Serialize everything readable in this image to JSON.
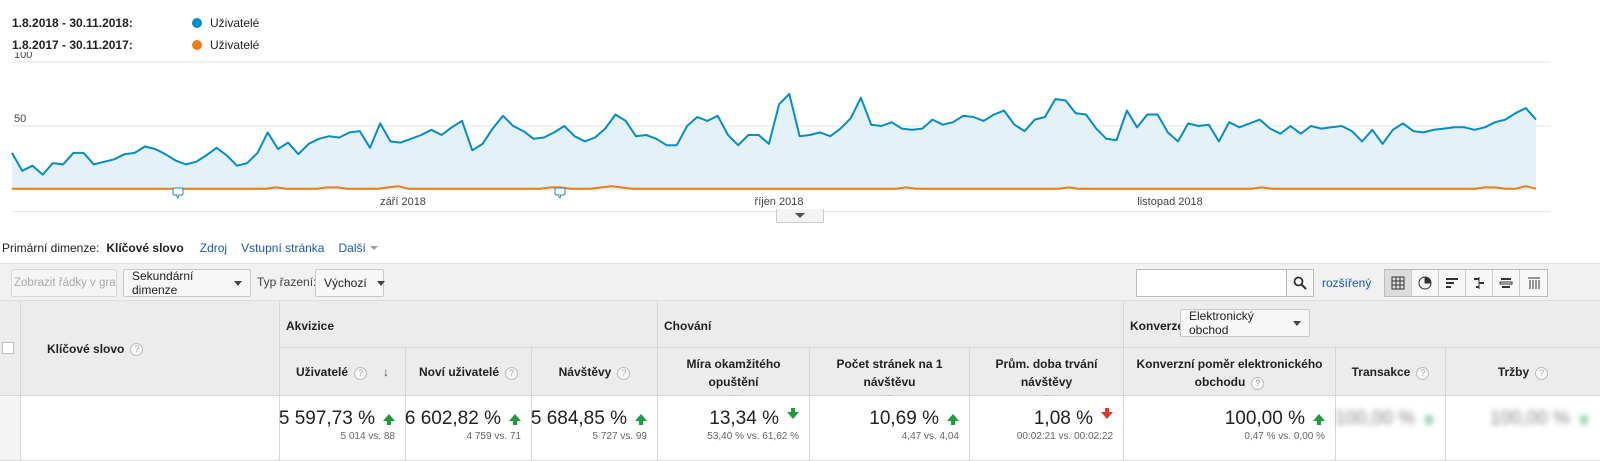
{
  "legend": [
    {
      "range": "1.8.2018 - 30.11.2018:",
      "series": "Uživatelé",
      "color": "#058dc7"
    },
    {
      "range": "1.8.2017 - 30.11.2017:",
      "series": "Uživatelé",
      "color": "#ed7e17"
    }
  ],
  "chart_data": {
    "type": "area",
    "y_ticks": [
      "100",
      "50"
    ],
    "ylim": [
      0,
      100
    ],
    "x_labels": [
      "září 2018",
      "říjen 2018",
      "listopad 2018"
    ],
    "series": [
      {
        "name": "Uživatelé",
        "color": "#058dc7",
        "values": [
          29,
          15,
          19,
          12,
          21,
          20,
          29,
          29,
          20,
          22,
          24,
          28,
          29,
          34,
          32,
          28,
          23,
          20,
          22,
          27,
          33,
          27,
          19,
          21,
          29,
          45,
          32,
          37,
          28,
          36,
          40,
          42,
          41,
          45,
          46,
          33,
          52,
          38,
          37,
          40,
          43,
          47,
          43,
          49,
          54,
          31,
          36,
          48,
          58,
          50,
          46,
          40,
          41,
          45,
          50,
          42,
          38,
          41,
          48,
          59,
          54,
          42,
          43,
          40,
          35,
          35,
          50,
          57,
          54,
          58,
          43,
          35,
          43,
          43,
          36,
          67,
          75,
          42,
          43,
          45,
          42,
          48,
          56,
          72,
          51,
          50,
          53,
          48,
          47,
          48,
          55,
          51,
          53,
          58,
          57,
          54,
          59,
          62,
          51,
          46,
          55,
          57,
          71,
          70,
          60,
          59,
          48,
          40,
          39,
          62,
          49,
          59,
          59,
          45,
          38,
          52,
          50,
          51,
          38,
          53,
          49,
          52,
          55,
          48,
          44,
          50,
          44,
          50,
          48,
          49,
          50,
          46,
          38,
          47,
          36,
          47,
          52,
          46,
          45,
          47,
          48,
          49,
          49,
          47,
          49,
          53,
          55,
          60,
          64,
          55
        ]
      },
      {
        "name": "Uživatelé",
        "color": "#ed7e17",
        "values": [
          1,
          1,
          1,
          1,
          1,
          1,
          1,
          1,
          1,
          1,
          1,
          1,
          1,
          1,
          1,
          1,
          1,
          1,
          1,
          1,
          1,
          1,
          1,
          1,
          1,
          1,
          2,
          1,
          1,
          1,
          1,
          2,
          2,
          1,
          1,
          1,
          1,
          2,
          3,
          1,
          1,
          1,
          1,
          1,
          1,
          1,
          1,
          1,
          1,
          1,
          1,
          1,
          1,
          2,
          2,
          1,
          1,
          1,
          2,
          3,
          2,
          1,
          1,
          1,
          1,
          1,
          1,
          1,
          1,
          1,
          1,
          1,
          1,
          1,
          1,
          1,
          1,
          1,
          1,
          1,
          1,
          1,
          1,
          1,
          1,
          1,
          1,
          1,
          2,
          1,
          1,
          1,
          1,
          1,
          1,
          1,
          1,
          1,
          1,
          1,
          1,
          1,
          1,
          1,
          2,
          1,
          1,
          1,
          1,
          1,
          1,
          1,
          1,
          1,
          1,
          1,
          1,
          1,
          1,
          1,
          1,
          1,
          1,
          2,
          1,
          1,
          1,
          1,
          1,
          1,
          1,
          1,
          1,
          1,
          1,
          1,
          1,
          1,
          1,
          1,
          1,
          1,
          1,
          1,
          1,
          2,
          2,
          1,
          1,
          3,
          1
        ]
      }
    ]
  },
  "primary_dimension": {
    "label": "Primární dimenze:",
    "active": "Klíčové slovo",
    "links": [
      "Zdroj",
      "Vstupní stránka"
    ],
    "more": "Další"
  },
  "toolbar": {
    "plot_rows": "Zobrazit řádky v grafu",
    "secondary_dim": "Sekundární dimenze",
    "sort_label": "Typ řazení:",
    "sort_value": "Výchozí",
    "search_value": "",
    "advanced": "rozšířený"
  },
  "table": {
    "keyword_header": "Klíčové slovo",
    "groups": {
      "acquisition": "Akvizice",
      "behavior": "Chování",
      "conversion": "Konverze",
      "conversion_select": "Elektronický obchod"
    },
    "columns": [
      {
        "label": "Uživatelé",
        "value": "5 597,73 %",
        "sub": "5 014 vs. 88",
        "trend": "up"
      },
      {
        "label": "Noví uživatelé",
        "value": "6 602,82 %",
        "sub": "4 759 vs. 71",
        "trend": "up"
      },
      {
        "label": "Návštěvy",
        "value": "5 684,85 %",
        "sub": "5 727 vs. 99",
        "trend": "up"
      },
      {
        "label": "Míra okamžitého opuštění",
        "value": "13,34 %",
        "sub": "53,40 % vs. 61,62 %",
        "trend": "down-good"
      },
      {
        "label": "Počet stránek na 1 návštěvu",
        "value": "10,69 %",
        "sub": "4,47 vs. 4,04",
        "trend": "up"
      },
      {
        "label": "Prům. doba trvání návštěvy",
        "value": "1,08 %",
        "sub": "00:02:21 vs. 00:02:22",
        "trend": "down-bad"
      },
      {
        "label": "Konverzní poměr elektronického obchodu",
        "value": "100,00 %",
        "sub": "0,47 % vs. 0,00 %",
        "trend": "up"
      },
      {
        "label": "Transakce",
        "value": "100,00 %",
        "sub": "",
        "trend": "up"
      },
      {
        "label": "Tržby",
        "value": "100,00 %",
        "sub": "",
        "trend": "up"
      }
    ]
  }
}
